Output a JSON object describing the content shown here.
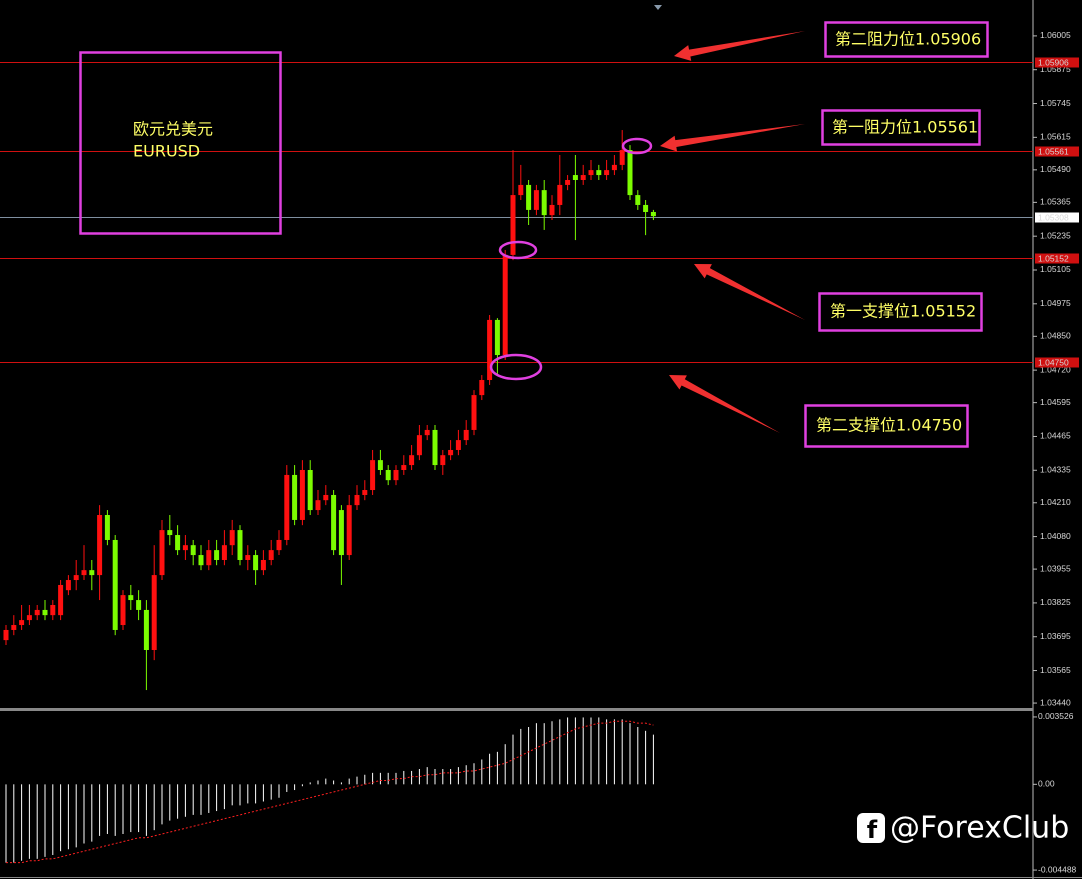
{
  "chart_data": [
    {
      "type": "candlestick",
      "candles": [
        [
          1.03682,
          1.0374,
          1.03663,
          1.03721
        ],
        [
          1.03721,
          1.03778,
          1.03701,
          1.0374
        ],
        [
          1.0374,
          1.03817,
          1.03721,
          1.03759
        ],
        [
          1.03759,
          1.03817,
          1.0374,
          1.03778
        ],
        [
          1.03778,
          1.03817,
          1.03759,
          1.03798
        ],
        [
          1.03798,
          1.03836,
          1.03759,
          1.03778
        ],
        [
          1.03778,
          1.03836,
          1.03759,
          1.03817
        ],
        [
          1.03778,
          1.03913,
          1.03759,
          1.03894
        ],
        [
          1.03874,
          1.03932,
          1.03855,
          1.03913
        ],
        [
          1.03913,
          1.0399,
          1.03874,
          1.03932
        ],
        [
          1.03932,
          1.04047,
          1.03913,
          1.03951
        ],
        [
          1.03951,
          1.0399,
          1.03874,
          1.03932
        ],
        [
          1.03932,
          1.04201,
          1.03836,
          1.04163
        ],
        [
          1.04163,
          1.04182,
          1.04047,
          1.04067
        ],
        [
          1.04067,
          1.04086,
          1.03701,
          1.03721
        ],
        [
          1.0374,
          1.03874,
          1.03721,
          1.03855
        ],
        [
          1.03855,
          1.03894,
          1.03798,
          1.03836
        ],
        [
          1.03836,
          1.03874,
          1.03759,
          1.03798
        ],
        [
          1.03798,
          1.03836,
          1.0349,
          1.03644
        ],
        [
          1.03644,
          1.04047,
          1.03605,
          1.03932
        ],
        [
          1.03932,
          1.04144,
          1.03913,
          1.04105
        ],
        [
          1.04105,
          1.04163,
          1.04047,
          1.04086
        ],
        [
          1.04086,
          1.04124,
          1.04009,
          1.04028
        ],
        [
          1.04028,
          1.04086,
          1.0399,
          1.04047
        ],
        [
          1.04047,
          1.04067,
          1.0397,
          1.04009
        ],
        [
          1.04009,
          1.04047,
          1.03951,
          1.0397
        ],
        [
          1.0397,
          1.04067,
          1.03951,
          1.04028
        ],
        [
          1.04028,
          1.04067,
          1.0397,
          1.0399
        ],
        [
          1.0399,
          1.04105,
          1.0397,
          1.04047
        ],
        [
          1.04047,
          1.04144,
          1.04009,
          1.04105
        ],
        [
          1.04105,
          1.04124,
          1.0397,
          1.0399
        ],
        [
          1.0399,
          1.04047,
          1.03951,
          1.04009
        ],
        [
          1.04009,
          1.04028,
          1.03894,
          1.03951
        ],
        [
          1.03951,
          1.04028,
          1.03932,
          1.0399
        ],
        [
          1.0399,
          1.04067,
          1.0397,
          1.04028
        ],
        [
          1.04028,
          1.04105,
          1.04009,
          1.04067
        ],
        [
          1.04067,
          1.04355,
          1.04047,
          1.04317
        ],
        [
          1.04317,
          1.04355,
          1.04124,
          1.04144
        ],
        [
          1.04144,
          1.04374,
          1.04124,
          1.04336
        ],
        [
          1.04336,
          1.04374,
          1.04163,
          1.04182
        ],
        [
          1.04182,
          1.04259,
          1.04163,
          1.0422
        ],
        [
          1.0422,
          1.04278,
          1.04201,
          1.0424
        ],
        [
          1.0424,
          1.04259,
          1.04009,
          1.04028
        ],
        [
          1.04182,
          1.04201,
          1.03894,
          1.04009
        ],
        [
          1.04009,
          1.0424,
          1.0399,
          1.04201
        ],
        [
          1.04201,
          1.04278,
          1.04182,
          1.0424
        ],
        [
          1.0424,
          1.04297,
          1.0422,
          1.04259
        ],
        [
          1.04259,
          1.04413,
          1.0424,
          1.04374
        ],
        [
          1.04374,
          1.04413,
          1.04317,
          1.04336
        ],
        [
          1.04336,
          1.04355,
          1.04278,
          1.04297
        ],
        [
          1.04297,
          1.04355,
          1.04278,
          1.04336
        ],
        [
          1.04336,
          1.04393,
          1.04317,
          1.04355
        ],
        [
          1.04355,
          1.04432,
          1.04336,
          1.04393
        ],
        [
          1.04393,
          1.04509,
          1.04374,
          1.0447
        ],
        [
          1.0447,
          1.04509,
          1.04451,
          1.0449
        ],
        [
          1.0449,
          1.04509,
          1.04336,
          1.04355
        ],
        [
          1.04355,
          1.04413,
          1.04317,
          1.04393
        ],
        [
          1.04393,
          1.04451,
          1.04374,
          1.04413
        ],
        [
          1.04413,
          1.0449,
          1.04393,
          1.04451
        ],
        [
          1.04451,
          1.04528,
          1.04432,
          1.0449
        ],
        [
          1.0449,
          1.04643,
          1.0447,
          1.04624
        ],
        [
          1.04624,
          1.04701,
          1.04605,
          1.04682
        ],
        [
          1.04682,
          1.04932,
          1.04663,
          1.04913
        ],
        [
          1.04913,
          1.0492,
          1.04701,
          1.04778
        ],
        [
          1.04778,
          1.05182,
          1.04759,
          1.05163
        ],
        [
          1.05163,
          1.05566,
          1.05143,
          1.05393
        ],
        [
          1.05393,
          1.05509,
          1.05374,
          1.05432
        ],
        [
          1.05432,
          1.05451,
          1.05278,
          1.05336
        ],
        [
          1.05336,
          1.05432,
          1.05316,
          1.05412
        ],
        [
          1.05412,
          1.05451,
          1.05259,
          1.05316
        ],
        [
          1.05316,
          1.05393,
          1.05297,
          1.05355
        ],
        [
          1.05355,
          1.05547,
          1.05316,
          1.05432
        ],
        [
          1.05432,
          1.0547,
          1.05412,
          1.05451
        ],
        [
          1.0547,
          1.05547,
          1.0522,
          1.05451
        ],
        [
          1.05451,
          1.05509,
          1.05432,
          1.0547
        ],
        [
          1.0547,
          1.05528,
          1.05451,
          1.05489
        ],
        [
          1.05489,
          1.05509,
          1.05451,
          1.0547
        ],
        [
          1.0547,
          1.05528,
          1.05451,
          1.05489
        ],
        [
          1.05489,
          1.05547,
          1.0547,
          1.05509
        ],
        [
          1.05509,
          1.05643,
          1.05489,
          1.05566
        ],
        [
          1.05566,
          1.05585,
          1.05374,
          1.05393
        ],
        [
          1.05393,
          1.05412,
          1.05336,
          1.05355
        ],
        [
          1.05355,
          1.05374,
          1.05239,
          1.05328
        ],
        [
          1.05328,
          1.05336,
          1.05297,
          1.05312
        ]
      ],
      "up_color": "#ff1010",
      "down_color": "#7cfc00",
      "ylim": [
        1.03421,
        1.06143
      ],
      "yticks": [
        1.06005,
        1.05875,
        1.05745,
        1.05615,
        {
          "value": 1.0549,
          "label": "1.05490"
        },
        1.05365,
        1.05235,
        1.05105,
        1.04975,
        {
          "value": 1.0485,
          "label": "1.04850"
        },
        {
          "value": 1.0472,
          "label": "1.04720"
        },
        1.04595,
        1.04465,
        1.04335,
        {
          "value": 1.0421,
          "label": "1.04210"
        },
        {
          "value": 1.0408,
          "label": "1.04080"
        },
        1.03955,
        1.03825,
        1.03695,
        1.03565,
        {
          "value": 1.0344,
          "label": "1.03440"
        }
      ],
      "levels": [
        {
          "value": 1.05906,
          "color": "#d01010",
          "box": "#d01010"
        },
        {
          "value": 1.05561,
          "color": "#d01010",
          "box": "#d01010"
        },
        {
          "value": 1.05308,
          "color": "#7f8fa0",
          "box": "#ffffff"
        },
        {
          "value": 1.05152,
          "color": "#d01010",
          "box": "#d01010"
        },
        {
          "value": 1.0475,
          "label": "1.04750",
          "color": "#d01010",
          "box": "#d01010"
        }
      ],
      "annotations": [
        "第二阻力位1.05906",
        "第一阻力位1.05561",
        "第一支撑位1.05152",
        "第二支撑位1.04750"
      ],
      "symbol_name": "欧元兑美元",
      "symbol": "EURUSD"
    },
    {
      "type": "oscillator",
      "ylim": [
        -0.004851,
        0.003837
      ],
      "yticks": [
        0.003526,
        {
          "value": 0,
          "label": "0.00"
        },
        -0.004488
      ],
      "series": [
        {
          "kind": "bar",
          "color": "#ffffff",
          "values": [
            -0.0041,
            -0.0041,
            -0.004,
            -0.0039,
            -0.0039,
            -0.0038,
            -0.0037,
            -0.0035,
            -0.0034,
            -0.0033,
            -0.0031,
            -0.003,
            -0.0027,
            -0.0026,
            -0.0027,
            -0.0026,
            -0.0025,
            -0.0025,
            -0.0027,
            -0.0024,
            -0.0021,
            -0.0019,
            -0.0018,
            -0.0017,
            -0.0016,
            -0.0016,
            -0.0015,
            -0.0014,
            -0.0013,
            -0.0011,
            -0.0011,
            -0.001,
            -0.001,
            -0.0009,
            -0.0008,
            -0.0007,
            -0.0004,
            -0.0003,
            -0.0001,
            0.0001,
            0.0002,
            0.0003,
            0.0002,
            0.0001,
            0.0003,
            0.0004,
            0.0005,
            0.0006,
            0.0006,
            0.0006,
            0.0006,
            0.0007,
            0.0007,
            0.0008,
            0.0009,
            0.0008,
            0.0008,
            0.0008,
            0.0009,
            0.001,
            0.0011,
            0.0013,
            0.0016,
            0.0017,
            0.0021,
            0.0026,
            0.0029,
            0.003,
            0.0032,
            0.0032,
            0.0033,
            0.0034,
            0.0035,
            0.0035,
            0.0035,
            0.0035,
            0.0035,
            0.0034,
            0.0034,
            0.0034,
            0.0032,
            0.003,
            0.0028,
            0.0026
          ]
        },
        {
          "kind": "line",
          "color": "#ff2020",
          "values": [
            -0.0041,
            -0.0041,
            -0.0041,
            -0.004,
            -0.004,
            -0.0039,
            -0.0039,
            -0.0038,
            -0.0037,
            -0.0036,
            -0.0035,
            -0.0034,
            -0.0033,
            -0.0032,
            -0.0031,
            -0.003,
            -0.0029,
            -0.0028,
            -0.0028,
            -0.0027,
            -0.0026,
            -0.0025,
            -0.0024,
            -0.0023,
            -0.0022,
            -0.0021,
            -0.002,
            -0.0019,
            -0.0018,
            -0.0017,
            -0.0016,
            -0.0015,
            -0.0014,
            -0.0013,
            -0.0012,
            -0.0011,
            -0.001,
            -0.0009,
            -0.0008,
            -0.0007,
            -0.0006,
            -0.0005,
            -0.0004,
            -0.0003,
            -0.0002,
            -0.0001,
            0.0,
            0.0001,
            0.0002,
            0.0002,
            0.0003,
            0.0003,
            0.0004,
            0.0004,
            0.0005,
            0.0005,
            0.0006,
            0.0006,
            0.0006,
            0.0007,
            0.0007,
            0.0008,
            0.0009,
            0.001,
            0.0011,
            0.0013,
            0.0015,
            0.0017,
            0.0019,
            0.0021,
            0.0023,
            0.0025,
            0.0027,
            0.0029,
            0.003,
            0.0031,
            0.0032,
            0.0032,
            0.0033,
            0.0033,
            0.0033,
            0.0032,
            0.0032,
            0.0031
          ]
        }
      ]
    }
  ],
  "watermark": "@ForexClub"
}
